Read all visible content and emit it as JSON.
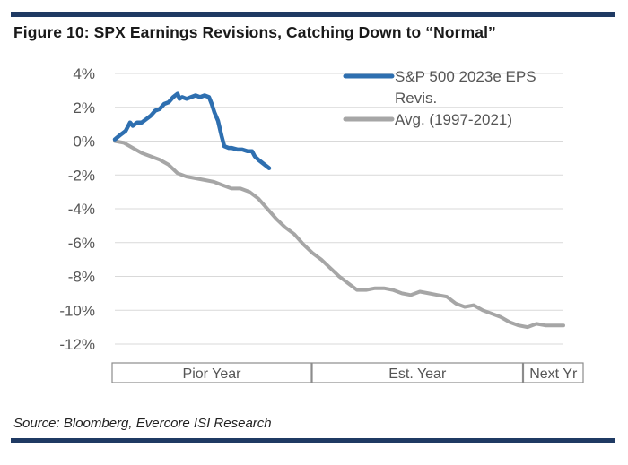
{
  "title": "Figure 10: SPX Earnings Revisions, Catching Down to “Normal”",
  "source": "Source: Bloomberg, Evercore ISI Research",
  "colors": {
    "rule": "#1f3a63",
    "series_current": "#2e6fb0",
    "series_avg": "#a6a6a6",
    "grid": "#d9d9d9"
  },
  "chart_data": {
    "type": "line",
    "title": "SPX Earnings Revisions, Catching Down to “Normal”",
    "ylabel": "",
    "ylim": [
      -12,
      4
    ],
    "y_ticks": [
      4,
      2,
      0,
      -2,
      -4,
      -6,
      -8,
      -10,
      -12
    ],
    "y_tick_labels": [
      "4%",
      "2%",
      "0%",
      "-2%",
      "-4%",
      "-6%",
      "-8%",
      "-10%",
      "-12%"
    ],
    "x_range": [
      0,
      100
    ],
    "x_periods": [
      {
        "label": "Pior Year",
        "start": 0,
        "end": 43.8
      },
      {
        "label": "Est. Year",
        "start": 44.6,
        "end": 90.9
      },
      {
        "label": "Next Yr",
        "start": 91.7,
        "end": 105
      }
    ],
    "grid": true,
    "legend": "top-right",
    "legend_labels": [
      "S&P 500 2023e EPS",
      "Revis.",
      "Avg. (1997-2021)"
    ],
    "series": [
      {
        "name": "S&P 500 2023e EPS Revis.",
        "color": "#2e6fb0",
        "x": [
          0,
          1.4,
          2.4,
          3.4,
          4.0,
          5.0,
          6.0,
          7.0,
          8.0,
          9.0,
          10.0,
          11.0,
          12.0,
          13.0,
          14.0,
          14.4,
          15.0,
          16.0,
          17.0,
          18.0,
          19.0,
          20.0,
          21.0,
          21.6,
          22.2,
          23.0,
          23.8,
          24.4,
          25.4,
          26.0,
          27.4,
          28.4,
          29.6,
          30.6,
          31.2,
          32.0,
          34.4
        ],
        "y": [
          0.1,
          0.4,
          0.6,
          1.1,
          0.9,
          1.1,
          1.1,
          1.3,
          1.5,
          1.8,
          1.9,
          2.2,
          2.3,
          2.6,
          2.8,
          2.5,
          2.6,
          2.5,
          2.6,
          2.7,
          2.6,
          2.7,
          2.6,
          2.2,
          1.7,
          1.2,
          0.3,
          -0.3,
          -0.4,
          -0.4,
          -0.5,
          -0.5,
          -0.6,
          -0.6,
          -0.9,
          -1.1,
          -1.6
        ]
      },
      {
        "name": "Avg. (1997-2021)",
        "color": "#a6a6a6",
        "x": [
          0,
          2,
          4,
          6,
          8,
          10,
          12,
          14,
          16,
          18,
          20,
          22,
          24,
          26,
          28,
          30,
          32,
          34,
          36,
          38,
          40,
          42,
          44,
          46,
          48,
          50,
          52,
          54,
          56,
          58,
          60,
          62,
          64,
          66,
          68,
          70,
          72,
          74,
          76,
          78,
          80,
          82,
          84,
          86,
          88,
          90,
          92,
          94,
          96,
          98,
          100
        ],
        "y": [
          0,
          -0.1,
          -0.4,
          -0.7,
          -0.9,
          -1.1,
          -1.4,
          -1.9,
          -2.1,
          -2.2,
          -2.3,
          -2.4,
          -2.6,
          -2.8,
          -2.8,
          -3.0,
          -3.4,
          -4.0,
          -4.6,
          -5.1,
          -5.5,
          -6.1,
          -6.6,
          -7.0,
          -7.5,
          -8.0,
          -8.4,
          -8.8,
          -8.8,
          -8.7,
          -8.7,
          -8.8,
          -9.0,
          -9.1,
          -8.9,
          -9.0,
          -9.1,
          -9.2,
          -9.6,
          -9.8,
          -9.7,
          -10.0,
          -10.2,
          -10.4,
          -10.7,
          -10.9,
          -11.0,
          -10.8,
          -10.9,
          -10.9,
          -10.9
        ]
      }
    ]
  }
}
